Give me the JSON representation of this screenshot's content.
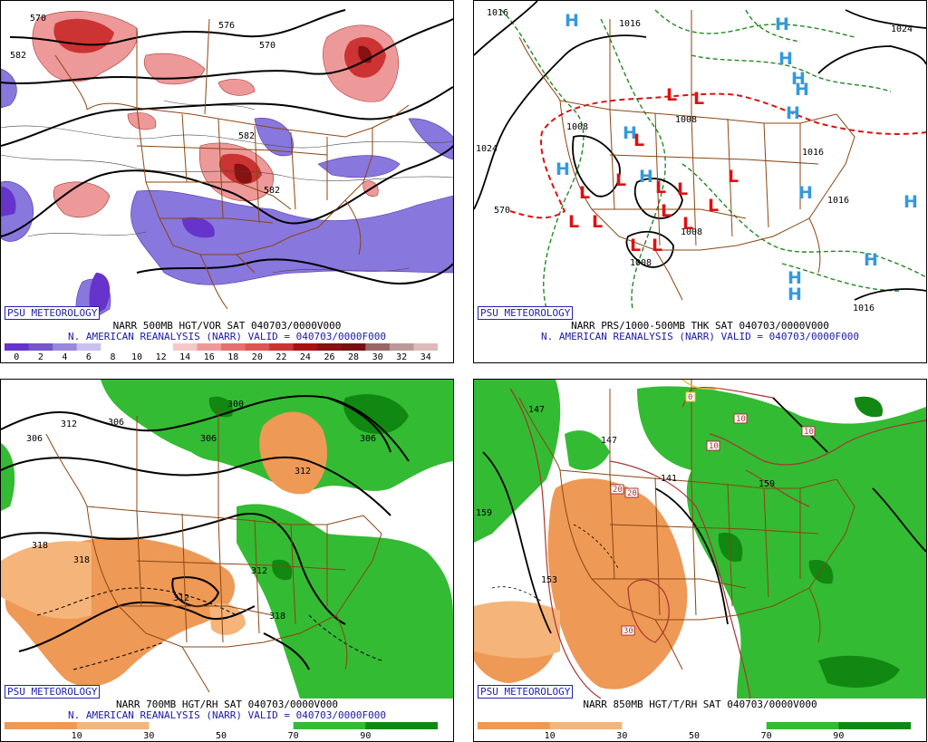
{
  "branding": "PSU METEOROLOGY",
  "panels": [
    {
      "caption1": "NARR 500MB HGT/VOR SAT 040703/0000V000",
      "caption2": "N. AMERICAN REANALYSIS (NARR) VALID = 040703/0000F000",
      "colorbar": {
        "labels": [
          "0",
          "2",
          "4",
          "6",
          "8",
          "10",
          "12",
          "14",
          "16",
          "18",
          "20",
          "22",
          "24",
          "26",
          "28",
          "30",
          "32",
          "34"
        ],
        "colors": [
          "#6633cc",
          "#7755cc",
          "#9988dd",
          "#c8c0ee",
          "#ffffff",
          "#ffffff",
          "#ffffff",
          "#f4c8c8",
          "#ee9999",
          "#e67070",
          "#dd5555",
          "#cc3333",
          "#aa1111",
          "#881111",
          "#771111",
          "#996666",
          "#bb9999",
          "#ddbbbb"
        ]
      },
      "contour_labels": [
        "570",
        "582",
        "576",
        "570",
        "582",
        "582"
      ]
    },
    {
      "caption1": "NARR PRS/1000-500MB THK SAT 040703/0000V000",
      "caption2": "N. AMERICAN REANALYSIS (NARR) VALID = 040703/0000F000",
      "contour_labels": [
        "1016",
        "1016",
        "1024",
        "1024",
        "1008",
        "1008",
        "1016",
        "570",
        "1008",
        "1016",
        "1016",
        "1008"
      ],
      "high_marker": "H",
      "low_marker": "L"
    },
    {
      "caption1": "NARR 700MB HGT/RH SAT 040703/0000V000",
      "caption2": "N. AMERICAN REANALYSIS (NARR) VALID = 040703/0000F000",
      "colorbar": {
        "labels": [
          "10",
          "30",
          "50",
          "70",
          "90"
        ],
        "colors": [
          "#ee9955",
          "#f5b47a",
          "#ffffff",
          "#ffffff",
          "#33bb33",
          "#118811"
        ]
      },
      "contour_labels": [
        "312",
        "306",
        "306",
        "300",
        "306",
        "306",
        "312",
        "318",
        "318",
        "312",
        "312",
        "318"
      ]
    },
    {
      "caption1": "NARR 850MB HGT/T/RH SAT 040703/0000V000",
      "colorbar": {
        "labels": [
          "10",
          "30",
          "50",
          "70",
          "90"
        ],
        "colors": [
          "#ee9955",
          "#f5b47a",
          "#ffffff",
          "#ffffff",
          "#33bb33",
          "#118811"
        ]
      },
      "contour_labels": [
        "147",
        "147",
        "159",
        "153",
        "159",
        "141"
      ],
      "temp_labels": [
        "0",
        "10",
        "10",
        "10",
        "20",
        "20",
        "30"
      ]
    }
  ]
}
